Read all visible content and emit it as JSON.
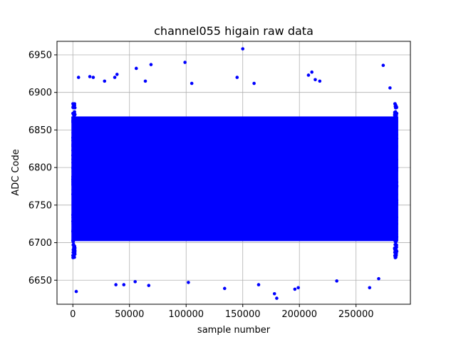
{
  "chart_data": {
    "type": "scatter",
    "title": "channel055 higain raw data",
    "xlabel": "sample number",
    "ylabel": "ADC Code",
    "xlim": [
      -14000,
      298000
    ],
    "ylim": [
      6618,
      6968
    ],
    "xticks": [
      0,
      50000,
      100000,
      150000,
      200000,
      250000
    ],
    "yticks": [
      6650,
      6700,
      6750,
      6800,
      6850,
      6900,
      6950
    ],
    "grid": true,
    "marker_color": "#0000ff",
    "series": [
      {
        "x_range": [
          0,
          286000
        ],
        "dense_band": [
          6690,
          6880
        ],
        "outliers": [
          {
            "x": 3000,
            "y": 6635
          },
          {
            "x": 5000,
            "y": 6920
          },
          {
            "x": 15000,
            "y": 6921
          },
          {
            "x": 18000,
            "y": 6920
          },
          {
            "x": 28000,
            "y": 6915
          },
          {
            "x": 37000,
            "y": 6920
          },
          {
            "x": 39000,
            "y": 6924
          },
          {
            "x": 38000,
            "y": 6644
          },
          {
            "x": 45000,
            "y": 6644
          },
          {
            "x": 55000,
            "y": 6648
          },
          {
            "x": 56000,
            "y": 6932
          },
          {
            "x": 64000,
            "y": 6915
          },
          {
            "x": 67000,
            "y": 6643
          },
          {
            "x": 69000,
            "y": 6937
          },
          {
            "x": 99000,
            "y": 6940
          },
          {
            "x": 102000,
            "y": 6647
          },
          {
            "x": 105000,
            "y": 6912
          },
          {
            "x": 134000,
            "y": 6639
          },
          {
            "x": 145000,
            "y": 6920
          },
          {
            "x": 150000,
            "y": 6958
          },
          {
            "x": 160000,
            "y": 6912
          },
          {
            "x": 164000,
            "y": 6644
          },
          {
            "x": 178000,
            "y": 6632
          },
          {
            "x": 180000,
            "y": 6626
          },
          {
            "x": 196000,
            "y": 6638
          },
          {
            "x": 199000,
            "y": 6640
          },
          {
            "x": 208000,
            "y": 6923
          },
          {
            "x": 211000,
            "y": 6927
          },
          {
            "x": 214000,
            "y": 6917
          },
          {
            "x": 218000,
            "y": 6915
          },
          {
            "x": 233000,
            "y": 6649
          },
          {
            "x": 262000,
            "y": 6640
          },
          {
            "x": 270000,
            "y": 6652
          },
          {
            "x": 274000,
            "y": 6936
          },
          {
            "x": 280000,
            "y": 6906
          }
        ]
      }
    ]
  }
}
